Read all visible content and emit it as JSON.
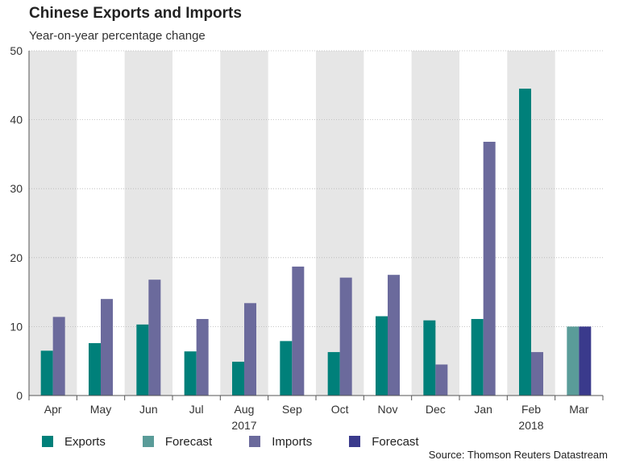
{
  "chart_data": {
    "type": "bar",
    "title": "Chinese Exports and Imports",
    "subtitle": "Year-on-year percentage change",
    "categories": [
      "Apr",
      "May",
      "Jun",
      "Jul",
      "Aug",
      "Sep",
      "Oct",
      "Nov",
      "Dec",
      "Jan",
      "Feb",
      "Mar"
    ],
    "year_labels": [
      {
        "text": "2017",
        "category": "Aug"
      },
      {
        "text": "2018",
        "category": "Feb"
      }
    ],
    "ylim": [
      0,
      50
    ],
    "yticks": [
      0,
      10,
      20,
      30,
      40,
      50
    ],
    "series": [
      {
        "name": "Exports",
        "color": "#00807a",
        "values": [
          6.5,
          7.6,
          10.3,
          6.4,
          4.9,
          7.9,
          6.3,
          11.5,
          10.9,
          11.1,
          44.5,
          null
        ]
      },
      {
        "name": "Forecast",
        "color": "#5a9c99",
        "values": [
          null,
          null,
          null,
          null,
          null,
          null,
          null,
          null,
          null,
          null,
          null,
          10.0
        ]
      },
      {
        "name": "Imports",
        "color": "#6b6a9c",
        "values": [
          11.4,
          14.0,
          16.8,
          11.1,
          13.4,
          18.7,
          17.1,
          17.5,
          4.5,
          36.8,
          6.3,
          null
        ]
      },
      {
        "name": "Forecast",
        "color": "#3a3a8c",
        "values": [
          null,
          null,
          null,
          null,
          null,
          null,
          null,
          null,
          null,
          null,
          null,
          10.0
        ]
      }
    ],
    "source": "Source: Thomson Reuters Datastream"
  }
}
